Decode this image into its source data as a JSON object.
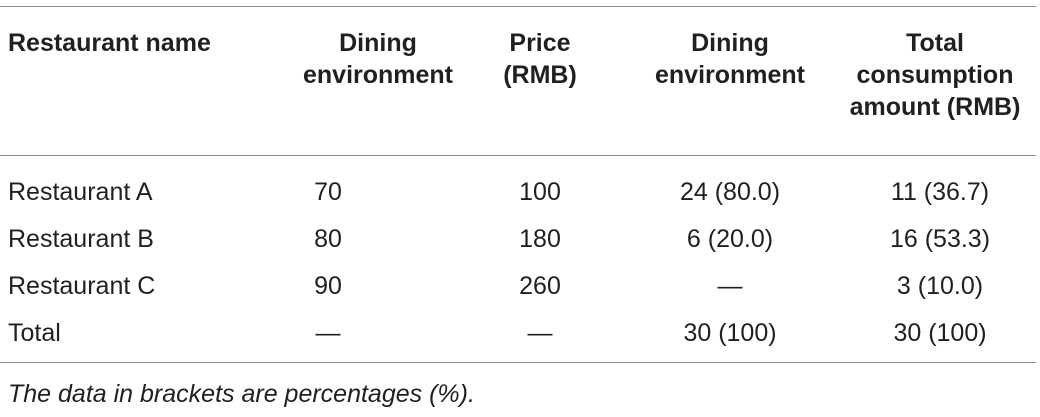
{
  "table": {
    "headers": [
      [
        "Restaurant name"
      ],
      [
        "Dining",
        "environment"
      ],
      [
        "Price",
        "(RMB)"
      ],
      [
        "Dining",
        "environment"
      ],
      [
        "Total",
        "consumption",
        "amount (RMB)"
      ]
    ],
    "rows": [
      [
        "Restaurant A",
        "70",
        "100",
        "24 (80.0)",
        "11 (36.7)"
      ],
      [
        "Restaurant B",
        "80",
        "180",
        "6 (20.0)",
        "16 (53.3)"
      ],
      [
        "Restaurant C",
        "90",
        "260",
        "—",
        "3 (10.0)"
      ],
      [
        "Total",
        "—",
        "—",
        "30 (100)",
        "30 (100)"
      ]
    ],
    "footnote": "The data in brackets are percentages (%)."
  }
}
